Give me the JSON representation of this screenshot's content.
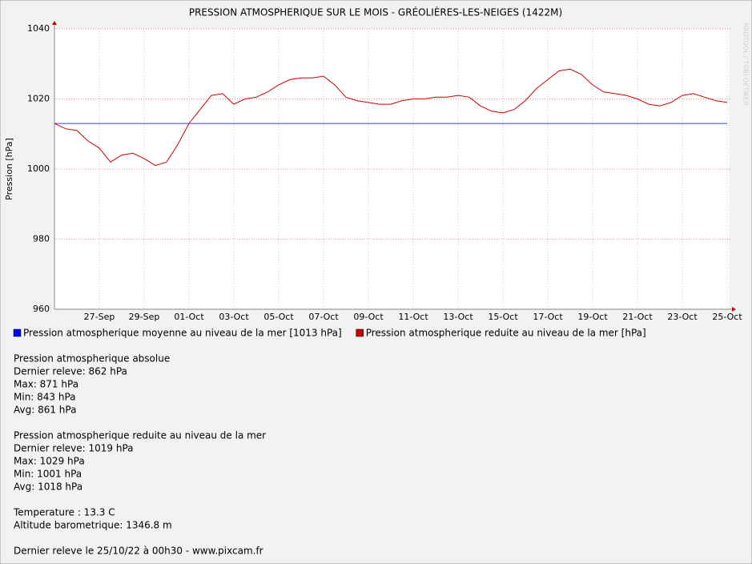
{
  "chart_data": {
    "type": "line",
    "title": "PRESSION ATMOSPHERIQUE SUR LE MOIS - GRÉOLIÈRES-LES-NEIGES (1422M)",
    "y_label": "Pression [hPa]",
    "watermark": "RRDTOOL / TOBI OETIKER",
    "x": [
      0,
      0.5,
      1,
      1.5,
      2,
      2.5,
      3,
      3.5,
      4,
      4.5,
      5,
      5.5,
      6,
      6.5,
      7,
      7.5,
      8,
      8.5,
      9,
      9.5,
      10,
      10.5,
      11,
      11.5,
      12,
      12.5,
      13,
      13.5,
      14,
      14.5,
      15,
      15.5,
      16,
      16.5,
      17,
      17.5,
      18,
      18.5,
      19,
      19.5,
      20,
      20.5,
      21,
      21.5,
      22,
      22.5,
      23,
      23.5,
      24,
      24.5,
      25,
      25.5,
      26,
      26.5,
      27,
      27.5,
      28,
      28.5,
      29,
      29.5,
      30
    ],
    "series": [
      {
        "name": "Pression atmospherique reduite au niveau de la mer [hPa]",
        "color": "#cc0000",
        "values": [
          1013,
          1011.5,
          1011,
          1008,
          1006,
          1002,
          1004,
          1004.5,
          1003,
          1001,
          1002,
          1007,
          1013,
          1017,
          1021,
          1021.5,
          1018.5,
          1020,
          1020.5,
          1022,
          1024,
          1025.5,
          1026,
          1026,
          1026.5,
          1024,
          1020.5,
          1019.5,
          1019,
          1018.5,
          1018.5,
          1019.5,
          1020,
          1020,
          1020.5,
          1020.5,
          1021,
          1020.5,
          1018,
          1016.5,
          1016,
          1017,
          1019.5,
          1023,
          1025.5,
          1028,
          1028.5,
          1027,
          1024,
          1022,
          1021.5,
          1021,
          1020,
          1018.5,
          1018,
          1019,
          1021,
          1021.5,
          1020.5,
          1019.5,
          1019
        ]
      }
    ],
    "hlines": [
      {
        "name": "Pression atmospherique moyenne au niveau de la mer [1013 hPa]",
        "color": "#0000ff",
        "value": 1013
      }
    ],
    "xlim": [
      0,
      30
    ],
    "xticks": [
      {
        "value": 2,
        "label": "27-Sep"
      },
      {
        "value": 4,
        "label": "29-Sep"
      },
      {
        "value": 6,
        "label": "01-Oct"
      },
      {
        "value": 8,
        "label": "03-Oct"
      },
      {
        "value": 10,
        "label": "05-Oct"
      },
      {
        "value": 12,
        "label": "07-Oct"
      },
      {
        "value": 14,
        "label": "09-Oct"
      },
      {
        "value": 16,
        "label": "11-Oct"
      },
      {
        "value": 18,
        "label": "13-Oct"
      },
      {
        "value": 20,
        "label": "15-Oct"
      },
      {
        "value": 22,
        "label": "17-Oct"
      },
      {
        "value": 24,
        "label": "19-Oct"
      },
      {
        "value": 26,
        "label": "21-Oct"
      },
      {
        "value": 28,
        "label": "23-Oct"
      },
      {
        "value": 30,
        "label": "25-Oct"
      }
    ],
    "ylim": [
      960,
      1040
    ],
    "yticks": [
      960,
      980,
      1000,
      1020,
      1040
    ],
    "grid": true
  },
  "info": [
    [
      "Pression atmospherique absolue",
      "Dernier releve: 862 hPa",
      "Max: 871 hPa",
      "Min: 843 hPa",
      "Avg: 861 hPa"
    ],
    [
      "Pression atmospherique reduite au niveau de la mer",
      "Dernier releve: 1019 hPa",
      "Max: 1029 hPa",
      "Min: 1001 hPa",
      "Avg: 1018 hPa"
    ],
    [
      "Temperature : 13.3 C",
      "Altitude barometrique: 1346.8 m"
    ],
    [
      "Dernier releve le 25/10/22 à 00h30 - www.pixcam.fr"
    ]
  ]
}
